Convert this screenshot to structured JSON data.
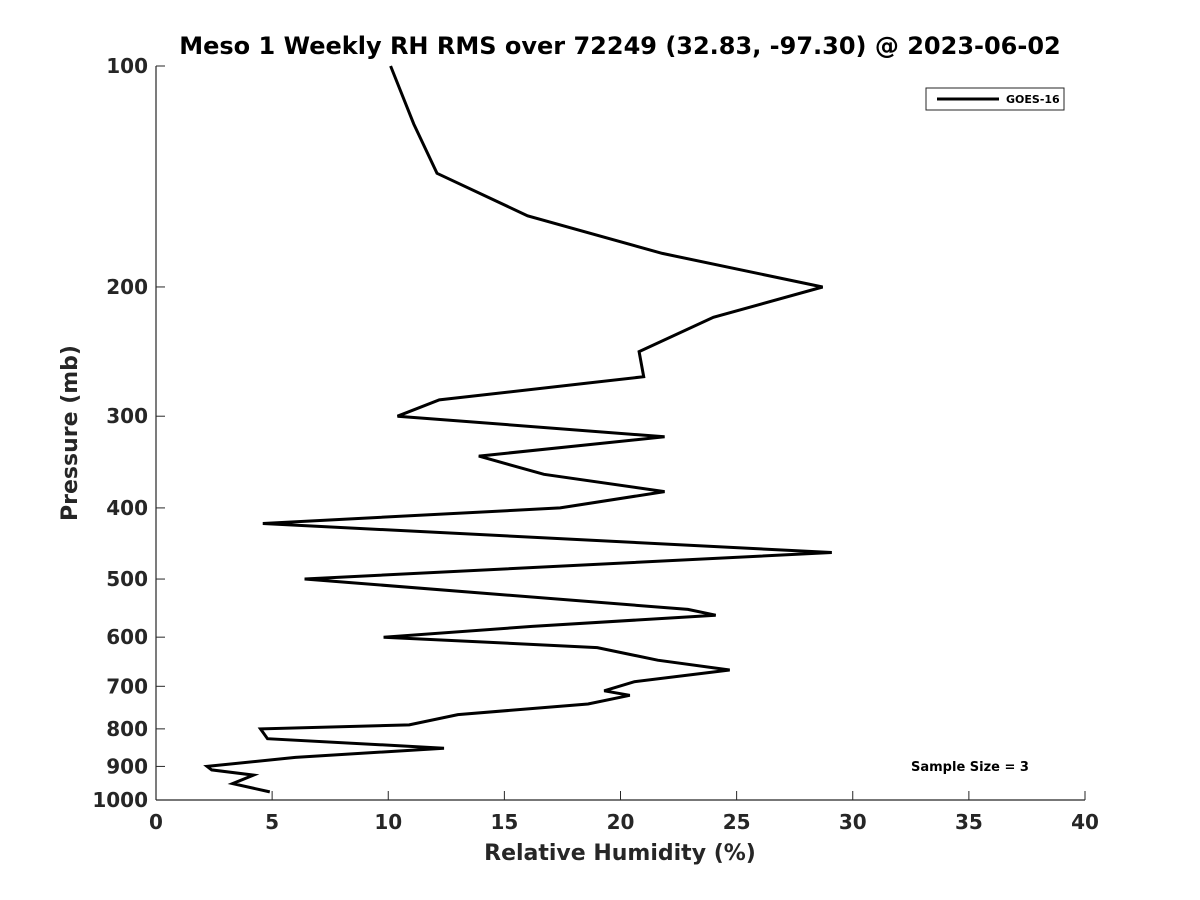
{
  "chart_data": {
    "type": "line",
    "title": "Meso 1 Weekly RH RMS over 72249 (32.83, -97.30) @ 2023-06-02",
    "xlabel": "Relative Humidity (%)",
    "ylabel": "Pressure (mb)",
    "xlim": [
      0,
      40
    ],
    "ylim": [
      1000,
      100
    ],
    "yscale": "log",
    "y_inverted": true,
    "grid": false,
    "legend_position": "top-right",
    "xticks": [
      "0",
      "5",
      "10",
      "15",
      "20",
      "25",
      "30",
      "35",
      "40"
    ],
    "yticks": [
      "100",
      "200",
      "300",
      "400",
      "500",
      "600",
      "700",
      "800",
      "900",
      "1000"
    ],
    "series": [
      {
        "name": "GOES-16",
        "color": "#000000",
        "x": [
          4.9,
          3.3,
          4.2,
          2.4,
          2.2,
          6.0,
          12.4,
          4.8,
          4.5,
          10.9,
          13.0,
          18.6,
          20.4,
          19.3,
          20.6,
          24.7,
          21.6,
          19.0,
          9.8,
          16.2,
          24.1,
          22.9,
          6.4,
          29.1,
          4.6,
          17.4,
          21.9,
          16.7,
          13.9,
          21.9,
          10.4,
          12.2,
          21.0,
          20.8,
          24.0,
          28.7,
          21.8,
          16.0,
          12.1,
          11.1,
          10.1
        ],
        "y": [
          975,
          950,
          925,
          910,
          900,
          875,
          850,
          825,
          800,
          790,
          765,
          740,
          720,
          710,
          690,
          665,
          645,
          620,
          600,
          580,
          560,
          550,
          500,
          460,
          420,
          400,
          380,
          360,
          340,
          320,
          300,
          285,
          265,
          245,
          220,
          200,
          180,
          160,
          140,
          120,
          100
        ]
      }
    ],
    "annotations": [
      "Sample Size = 3"
    ]
  }
}
